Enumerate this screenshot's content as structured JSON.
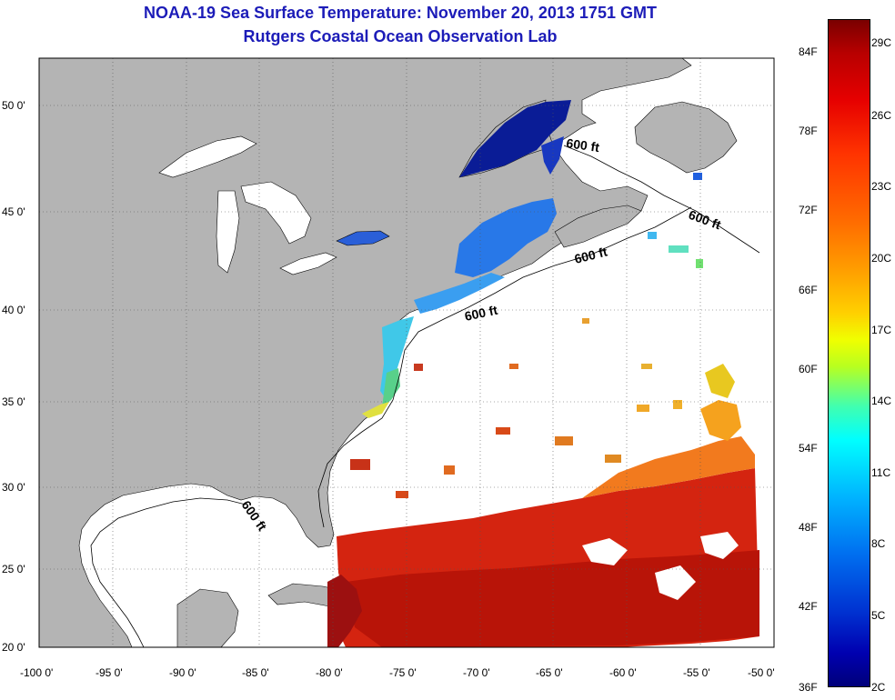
{
  "title": {
    "line1": "NOAA-19 Sea Surface Temperature:  November 20, 2013 1751 GMT",
    "line2": "Rutgers Coastal Ocean Observation Lab"
  },
  "map": {
    "lat_labels": [
      "50 0'",
      "45 0'",
      "40 0'",
      "35 0'",
      "30 0'",
      "25 0'",
      "20 0'"
    ],
    "lon_labels": [
      "-100 0'",
      "-95 0'",
      "-90 0'",
      "-85 0'",
      "-80 0'",
      "-75 0'",
      "-70 0'",
      "-65 0'",
      "-60 0'",
      "-55 0'",
      "-50 0'"
    ],
    "isobath_label": "600 ft",
    "colors": {
      "land": "#b4b4b4",
      "ocean_nodata": "#ffffff",
      "grid": "#555555"
    }
  },
  "colorbar": {
    "fahrenheit_labels": [
      "84F",
      "78F",
      "72F",
      "66F",
      "60F",
      "54F",
      "48F",
      "42F",
      "36F"
    ],
    "celsius_labels": [
      "29C",
      "26C",
      "23C",
      "20C",
      "17C",
      "14C",
      "11C",
      "8C",
      "5C",
      "2C"
    ]
  }
}
